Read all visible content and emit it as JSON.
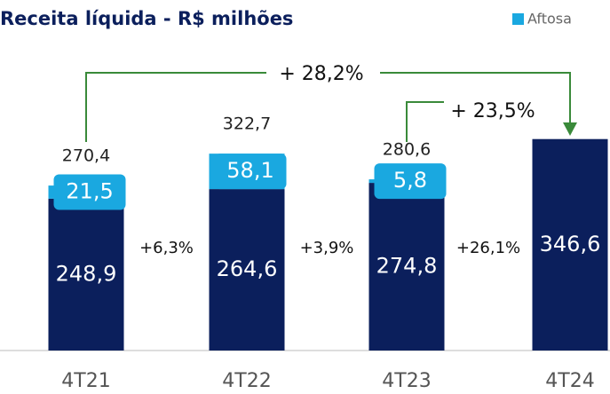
{
  "chart_data": {
    "type": "stacked_bar",
    "title": "Receita líquida - R$ milhões",
    "categories": [
      "4T21",
      "4T22",
      "4T23",
      "4T24"
    ],
    "series": [
      {
        "color": "#0b1f5c",
        "values": [
          248.9,
          264.6,
          274.8,
          346.6
        ],
        "value_labels": [
          "248,9",
          "264,6",
          "274,8",
          "346,6"
        ]
      },
      {
        "name": "Aftosa",
        "color": "#1aa8e0",
        "values": [
          21.5,
          58.1,
          5.8,
          null
        ],
        "value_labels": [
          "21,5",
          "58,1",
          "5,8",
          null
        ]
      }
    ],
    "totals": [
      270.4,
      322.7,
      280.6,
      null
    ],
    "total_labels": [
      "270,4",
      "322,7",
      "280,6",
      null
    ],
    "growth_labels": [
      "+6,3%",
      "+3,9%",
      "+26,1%"
    ],
    "arrow_labels": [
      "+ 28,2%",
      "+ 23,5%"
    ],
    "ylim": [
      0,
      400
    ],
    "legend": "top-right"
  }
}
